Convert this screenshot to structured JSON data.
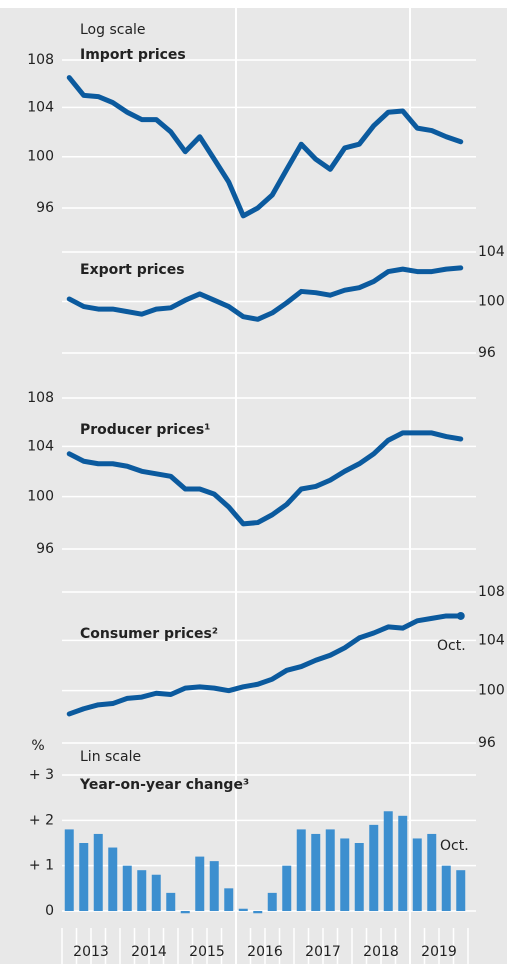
{
  "x_axis": {
    "years": [
      "2013",
      "2014",
      "2015",
      "2016",
      "2017",
      "2018",
      "2019"
    ]
  },
  "chart_data": [
    {
      "type": "line",
      "note": "Log scale",
      "title": "Import prices",
      "log_scale": true,
      "yaxis_position": "left",
      "color": "#0b5a9e",
      "values": [
        106.5,
        105.0,
        104.9,
        104.4,
        103.6,
        103.0,
        103.0,
        102.0,
        100.4,
        101.6,
        99.8,
        98.0,
        95.4,
        96.0,
        97.0,
        99.0,
        101.0,
        99.8,
        99.0,
        100.7,
        101.0,
        102.5,
        103.6,
        103.7,
        102.3,
        102.1,
        101.6,
        101.2
      ],
      "ylim": [
        96,
        108
      ],
      "yticks": [
        96,
        100,
        104,
        108
      ],
      "grid": true
    },
    {
      "type": "line",
      "title": "Export prices",
      "log_scale": true,
      "yaxis_position": "right",
      "color": "#0b5a9e",
      "values": [
        100.2,
        99.6,
        99.4,
        99.4,
        99.2,
        99.0,
        99.4,
        99.5,
        100.1,
        100.6,
        100.1,
        99.6,
        98.8,
        98.6,
        99.1,
        99.9,
        100.8,
        100.7,
        100.5,
        100.9,
        101.1,
        101.6,
        102.4,
        102.6,
        102.4,
        102.4,
        102.6,
        102.7
      ],
      "ylim": [
        96,
        104
      ],
      "yticks": [
        96,
        100,
        104
      ],
      "grid": true
    },
    {
      "type": "line",
      "title": "Producer prices¹",
      "log_scale": true,
      "yaxis_position": "left",
      "color": "#0b5a9e",
      "values": [
        103.4,
        102.8,
        102.6,
        102.6,
        102.4,
        102.0,
        101.8,
        101.6,
        100.6,
        100.6,
        100.2,
        99.2,
        97.9,
        98.0,
        98.6,
        99.4,
        100.6,
        100.8,
        101.3,
        102.0,
        102.6,
        103.4,
        104.5,
        105.1,
        105.1,
        105.1,
        104.8,
        104.6
      ],
      "ylim": [
        96,
        108
      ],
      "yticks": [
        96,
        100,
        104,
        108
      ],
      "grid": true
    },
    {
      "type": "line",
      "title": "Consumer prices²",
      "log_scale": true,
      "yaxis_position": "right",
      "color": "#0b5a9e",
      "end_label": "Oct.",
      "values": [
        98.2,
        98.6,
        98.9,
        99.0,
        99.4,
        99.5,
        99.8,
        99.7,
        100.2,
        100.3,
        100.2,
        100.0,
        100.3,
        100.5,
        100.9,
        101.6,
        101.9,
        102.4,
        102.8,
        103.4,
        104.2,
        104.6,
        105.1,
        105.0,
        105.6,
        105.8,
        106.0,
        106.0
      ],
      "ylim": [
        96,
        108
      ],
      "yticks": [
        96,
        100,
        104,
        108
      ],
      "grid": true
    },
    {
      "type": "bar",
      "unit": "%",
      "note": "Lin scale",
      "title": "Year-on-year change³",
      "log_scale": false,
      "yaxis_position": "left",
      "color": "#3d8fcf",
      "end_label": "Oct.",
      "values": [
        1.8,
        1.5,
        1.7,
        1.4,
        1.0,
        0.9,
        0.8,
        0.4,
        -0.05,
        1.2,
        1.1,
        0.5,
        0.05,
        -0.05,
        0.4,
        1.0,
        1.8,
        1.7,
        1.8,
        1.6,
        1.5,
        1.9,
        2.2,
        2.1,
        1.6,
        1.7,
        1.0,
        0.9
      ],
      "ylim": [
        0,
        3
      ],
      "yticks": [
        0,
        {
          "value": 1,
          "label": "+ 1"
        },
        {
          "value": 2,
          "label": "+ 2"
        },
        {
          "value": 3,
          "label": "+ 3"
        }
      ],
      "grid": true
    }
  ]
}
